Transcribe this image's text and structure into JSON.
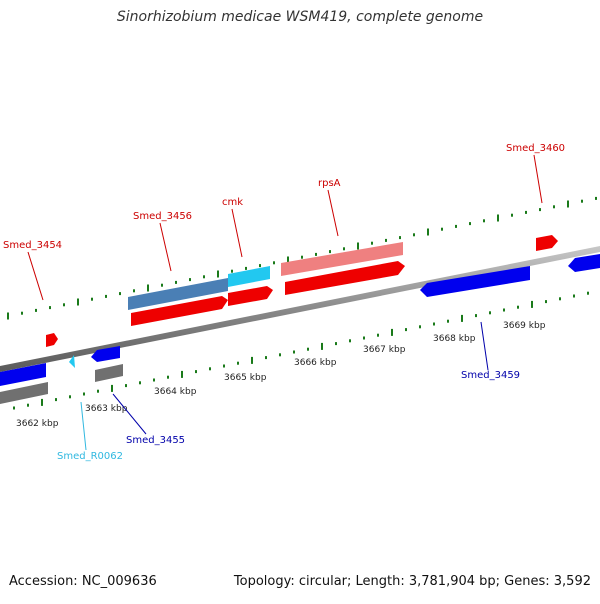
{
  "title": "Sinorhizobium medicae WSM419, complete genome",
  "footer": {
    "accession": "Accession: NC_009636",
    "summary": "Topology: circular; Length: 3,781,904 bp; Genes: 3,592"
  },
  "colors": {
    "forward_gene": "#ff0000",
    "forward_gene_light": "#ef8080",
    "forward_label": "#cc0000",
    "reverse_gene": "#0000ee",
    "reverse_label": "#0000aa",
    "rna_gene": "#22c8f0",
    "rna_label": "#30b8e0",
    "cds_steelblue": "#4a7fb5",
    "pseudo_gray": "#707070",
    "backbone": "#8a8a8a",
    "ruler_ticks": "#1a7a1a"
  },
  "ruler": {
    "labels": [
      "3662 kbp",
      "3663 kbp",
      "3664 kbp",
      "3665 kbp",
      "3666 kbp",
      "3667 kbp",
      "3668 kbp",
      "3669 kbp"
    ]
  },
  "genes": [
    {
      "label": "Smed_3454",
      "strand": "forward",
      "color_key": "forward_gene",
      "label_color_key": "forward_label"
    },
    {
      "label": "Smed_3456",
      "strand": "forward",
      "color_key": "forward_gene",
      "label_color_key": "forward_label"
    },
    {
      "label": "cmk",
      "strand": "forward",
      "color_key": "forward_gene",
      "label_color_key": "forward_label"
    },
    {
      "label": "rpsA",
      "strand": "forward",
      "color_key": "forward_gene",
      "label_color_key": "forward_label"
    },
    {
      "label": "Smed_3460",
      "strand": "forward",
      "color_key": "forward_gene",
      "label_color_key": "forward_label"
    },
    {
      "label": "Smed_3459",
      "strand": "reverse",
      "color_key": "reverse_gene",
      "label_color_key": "reverse_label"
    },
    {
      "label": "Smed_3455",
      "strand": "reverse",
      "color_key": "reverse_gene",
      "label_color_key": "reverse_label"
    },
    {
      "label": "Smed_R0062",
      "strand": "reverse",
      "color_key": "rna_gene",
      "label_color_key": "rna_label"
    }
  ]
}
